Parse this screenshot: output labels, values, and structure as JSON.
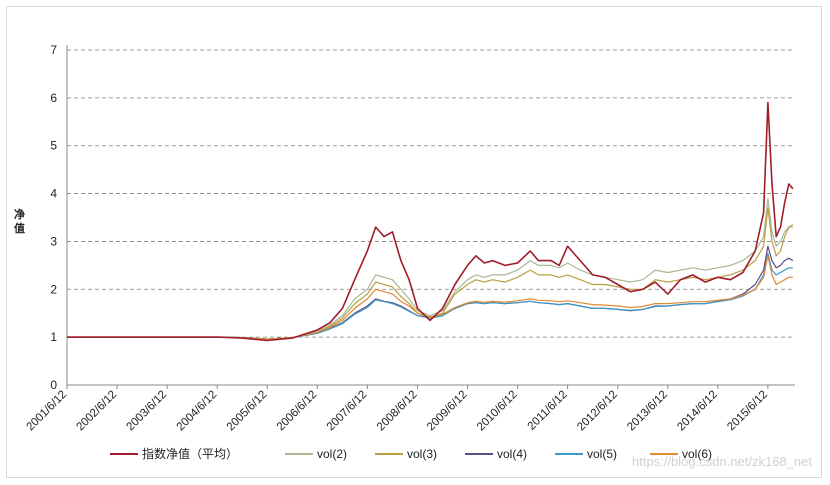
{
  "chart_data": {
    "type": "line",
    "title": "",
    "xlabel": "",
    "ylabel": "净值",
    "ylim": [
      0,
      7
    ],
    "yticks": [
      0,
      1,
      2,
      3,
      4,
      5,
      6,
      7
    ],
    "grid": "horizontal-dashed",
    "legend_position": "bottom",
    "x_tick_labels": [
      "2001/6/12",
      "2002/6/12",
      "2003/6/12",
      "2004/6/12",
      "2005/6/12",
      "2006/6/12",
      "2007/6/12",
      "2008/6/12",
      "2009/6/12",
      "2010/6/12",
      "2011/6/12",
      "2012/6/12",
      "2013/6/12",
      "2014/6/12",
      "2015/6/12"
    ],
    "x": [
      "2001/6/12",
      "2001/12/12",
      "2002/6/12",
      "2002/12/12",
      "2003/6/12",
      "2003/12/12",
      "2004/6/12",
      "2004/12/12",
      "2005/6/12",
      "2005/12/12",
      "2006/6/12",
      "2006/9/12",
      "2006/12/12",
      "2007/3/12",
      "2007/6/12",
      "2007/8/12",
      "2007/10/12",
      "2007/12/12",
      "2008/2/12",
      "2008/4/12",
      "2008/6/12",
      "2008/9/12",
      "2008/12/12",
      "2009/3/12",
      "2009/6/12",
      "2009/8/12",
      "2009/10/12",
      "2009/12/12",
      "2010/3/12",
      "2010/6/12",
      "2010/9/12",
      "2010/11/12",
      "2011/2/12",
      "2011/4/12",
      "2011/6/12",
      "2011/9/12",
      "2011/12/12",
      "2012/3/12",
      "2012/6/12",
      "2012/9/12",
      "2012/12/12",
      "2013/3/12",
      "2013/6/12",
      "2013/9/12",
      "2013/12/12",
      "2014/3/12",
      "2014/6/12",
      "2014/9/12",
      "2014/12/12",
      "2015/3/12",
      "2015/5/12",
      "2015/6/12",
      "2015/7/12",
      "2015/8/12",
      "2015/9/12",
      "2015/10/12",
      "2015/11/12",
      "2015/12/12"
    ],
    "series": [
      {
        "name": "指数净值（平均）",
        "color": "#a01d2b",
        "width": 1.6,
        "values": [
          1.0,
          1.0,
          1.0,
          1.0,
          1.0,
          1.0,
          1.0,
          0.98,
          0.93,
          0.98,
          1.15,
          1.3,
          1.6,
          2.2,
          2.8,
          3.3,
          3.1,
          3.2,
          2.6,
          2.2,
          1.6,
          1.35,
          1.6,
          2.1,
          2.5,
          2.7,
          2.55,
          2.6,
          2.5,
          2.55,
          2.8,
          2.6,
          2.6,
          2.5,
          2.9,
          2.6,
          2.3,
          2.25,
          2.1,
          1.95,
          2.0,
          2.15,
          1.9,
          2.2,
          2.3,
          2.15,
          2.25,
          2.2,
          2.35,
          2.8,
          3.6,
          5.9,
          4.2,
          3.1,
          3.3,
          3.8,
          4.2,
          4.1
        ]
      },
      {
        "name": "vol(2)",
        "color": "#a8b994",
        "width": 1.2,
        "values": [
          1.0,
          1.0,
          1.0,
          1.0,
          1.0,
          1.0,
          1.0,
          0.99,
          0.96,
          0.99,
          1.12,
          1.25,
          1.45,
          1.8,
          2.0,
          2.3,
          2.25,
          2.2,
          2.0,
          1.8,
          1.55,
          1.45,
          1.55,
          1.95,
          2.2,
          2.3,
          2.25,
          2.3,
          2.3,
          2.4,
          2.6,
          2.5,
          2.5,
          2.45,
          2.55,
          2.4,
          2.3,
          2.25,
          2.2,
          2.15,
          2.2,
          2.4,
          2.35,
          2.4,
          2.45,
          2.4,
          2.45,
          2.5,
          2.6,
          2.8,
          3.1,
          3.9,
          3.2,
          2.9,
          3.0,
          3.2,
          3.3,
          3.3
        ]
      },
      {
        "name": "vol(3)",
        "color": "#b8a040",
        "width": 1.2,
        "values": [
          1.0,
          1.0,
          1.0,
          1.0,
          1.0,
          1.0,
          1.0,
          0.99,
          0.96,
          0.99,
          1.1,
          1.22,
          1.4,
          1.7,
          1.9,
          2.15,
          2.1,
          2.05,
          1.85,
          1.7,
          1.5,
          1.4,
          1.5,
          1.9,
          2.1,
          2.2,
          2.15,
          2.2,
          2.15,
          2.25,
          2.4,
          2.3,
          2.3,
          2.25,
          2.3,
          2.2,
          2.1,
          2.1,
          2.05,
          2.0,
          2.0,
          2.2,
          2.15,
          2.2,
          2.25,
          2.2,
          2.25,
          2.3,
          2.4,
          2.6,
          2.9,
          3.7,
          3.0,
          2.7,
          2.8,
          3.1,
          3.3,
          3.35
        ]
      },
      {
        "name": "vol(4)",
        "color": "#5c4a8a",
        "width": 1.2,
        "values": [
          1.0,
          1.0,
          1.0,
          1.0,
          1.0,
          1.0,
          1.0,
          0.99,
          0.96,
          0.99,
          1.08,
          1.18,
          1.3,
          1.5,
          1.65,
          1.8,
          1.75,
          1.72,
          1.65,
          1.55,
          1.45,
          1.4,
          1.45,
          1.6,
          1.7,
          1.72,
          1.7,
          1.72,
          1.7,
          1.72,
          1.75,
          1.72,
          1.7,
          1.68,
          1.7,
          1.65,
          1.6,
          1.6,
          1.58,
          1.55,
          1.58,
          1.65,
          1.65,
          1.68,
          1.7,
          1.7,
          1.75,
          1.8,
          1.9,
          2.1,
          2.4,
          2.9,
          2.6,
          2.45,
          2.5,
          2.6,
          2.65,
          2.6
        ]
      },
      {
        "name": "vol(5)",
        "color": "#3a9ac8",
        "width": 1.2,
        "values": [
          1.0,
          1.0,
          1.0,
          1.0,
          1.0,
          1.0,
          1.0,
          0.99,
          0.96,
          0.99,
          1.08,
          1.17,
          1.28,
          1.48,
          1.62,
          1.78,
          1.74,
          1.7,
          1.63,
          1.54,
          1.45,
          1.4,
          1.45,
          1.6,
          1.7,
          1.72,
          1.7,
          1.72,
          1.7,
          1.72,
          1.75,
          1.72,
          1.7,
          1.68,
          1.7,
          1.65,
          1.6,
          1.6,
          1.58,
          1.56,
          1.58,
          1.64,
          1.65,
          1.68,
          1.7,
          1.7,
          1.74,
          1.78,
          1.86,
          2.0,
          2.3,
          2.75,
          2.4,
          2.3,
          2.35,
          2.4,
          2.45,
          2.45
        ]
      },
      {
        "name": "vol(6)",
        "color": "#e08a30",
        "width": 1.2,
        "values": [
          1.0,
          1.0,
          1.0,
          1.0,
          1.0,
          1.0,
          1.0,
          0.99,
          0.96,
          0.99,
          1.1,
          1.2,
          1.35,
          1.6,
          1.8,
          2.0,
          1.95,
          1.9,
          1.75,
          1.65,
          1.5,
          1.42,
          1.48,
          1.62,
          1.72,
          1.75,
          1.73,
          1.75,
          1.73,
          1.76,
          1.8,
          1.77,
          1.76,
          1.74,
          1.76,
          1.72,
          1.68,
          1.67,
          1.65,
          1.62,
          1.64,
          1.7,
          1.7,
          1.72,
          1.74,
          1.74,
          1.77,
          1.8,
          1.88,
          2.0,
          2.25,
          2.7,
          2.3,
          2.1,
          2.15,
          2.2,
          2.25,
          2.25
        ]
      }
    ]
  },
  "watermark_text": "https://blog.csdn.net/zk168_net"
}
